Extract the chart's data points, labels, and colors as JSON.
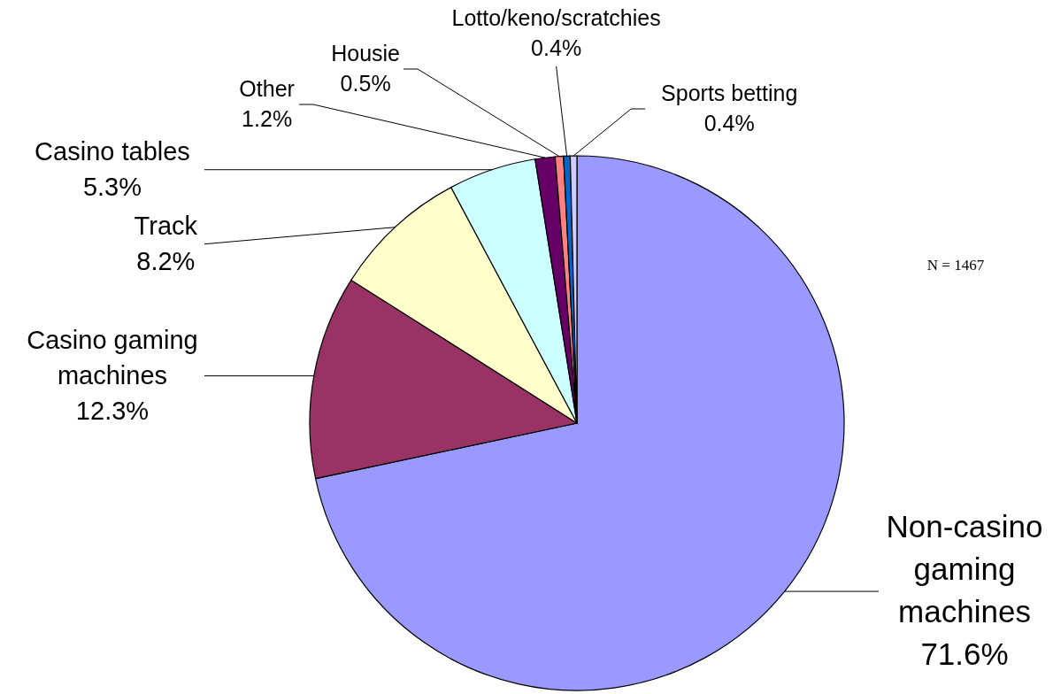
{
  "chart_data": {
    "type": "pie",
    "categories": [
      "Non-casino gaming machines",
      "Casino gaming machines",
      "Track",
      "Casino tables",
      "Other",
      "Housie",
      "Lotto/keno/scratchies",
      "Sports betting"
    ],
    "values": [
      71.6,
      12.3,
      8.2,
      5.3,
      1.2,
      0.5,
      0.4,
      0.4
    ],
    "value_labels": [
      "71.6%",
      "12.3%",
      "8.2%",
      "5.3%",
      "1.2%",
      "0.5%",
      "0.4%",
      "0.4%"
    ],
    "colors": [
      "#9999ff",
      "#993366",
      "#ffffcc",
      "#ccffff",
      "#660066",
      "#ff8080",
      "#0066cc",
      "#ccccff"
    ],
    "annotations": [
      "N = 1467"
    ]
  }
}
